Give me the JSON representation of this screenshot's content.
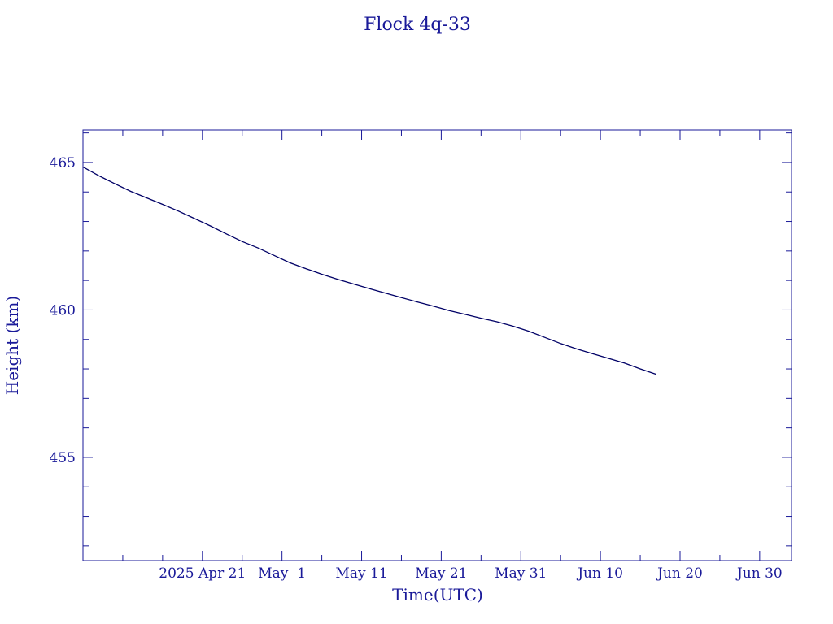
{
  "chart_data": {
    "type": "line",
    "title": "Flock 4q-33",
    "xlabel": "Time(UTC)",
    "ylabel": "Height (km)",
    "xlim": [
      "2025-04-06",
      "2025-07-04"
    ],
    "ylim": [
      451.5,
      466.1
    ],
    "x_ticks": [
      {
        "date": "2025-04-21",
        "label": "2025 Apr 21"
      },
      {
        "date": "2025-05-01",
        "label": "May  1"
      },
      {
        "date": "2025-05-11",
        "label": "May 11"
      },
      {
        "date": "2025-05-21",
        "label": "May 21"
      },
      {
        "date": "2025-05-31",
        "label": "May 31"
      },
      {
        "date": "2025-06-10",
        "label": "Jun 10"
      },
      {
        "date": "2025-06-20",
        "label": "Jun 20"
      },
      {
        "date": "2025-06-30",
        "label": "Jun 30"
      }
    ],
    "y_ticks": [
      455,
      460,
      465
    ],
    "grid": false,
    "colors": {
      "line": "#000066",
      "text": "#1a1a99",
      "axes": "#1a1a99"
    },
    "series": [
      {
        "x": [
          "2025-04-06",
          "2025-04-08",
          "2025-04-10",
          "2025-04-12",
          "2025-04-14",
          "2025-04-16",
          "2025-04-18",
          "2025-04-20",
          "2025-04-22",
          "2025-04-24",
          "2025-04-26",
          "2025-04-28",
          "2025-04-30",
          "2025-05-02",
          "2025-05-04",
          "2025-05-06",
          "2025-05-08",
          "2025-05-10",
          "2025-05-12",
          "2025-05-14",
          "2025-05-16",
          "2025-05-18",
          "2025-05-20",
          "2025-05-22",
          "2025-05-24",
          "2025-05-26",
          "2025-05-28",
          "2025-05-30",
          "2025-06-01",
          "2025-06-03",
          "2025-06-05",
          "2025-06-07",
          "2025-06-09",
          "2025-06-11",
          "2025-06-13",
          "2025-06-15",
          "2025-06-17"
        ],
        "y": [
          464.85,
          464.55,
          464.28,
          464.02,
          463.8,
          463.58,
          463.35,
          463.1,
          462.85,
          462.58,
          462.32,
          462.1,
          461.85,
          461.6,
          461.4,
          461.21,
          461.04,
          460.88,
          460.72,
          460.57,
          460.42,
          460.27,
          460.13,
          459.98,
          459.85,
          459.72,
          459.6,
          459.45,
          459.28,
          459.07,
          458.86,
          458.68,
          458.52,
          458.36,
          458.2,
          458.0,
          457.82
        ]
      }
    ]
  }
}
